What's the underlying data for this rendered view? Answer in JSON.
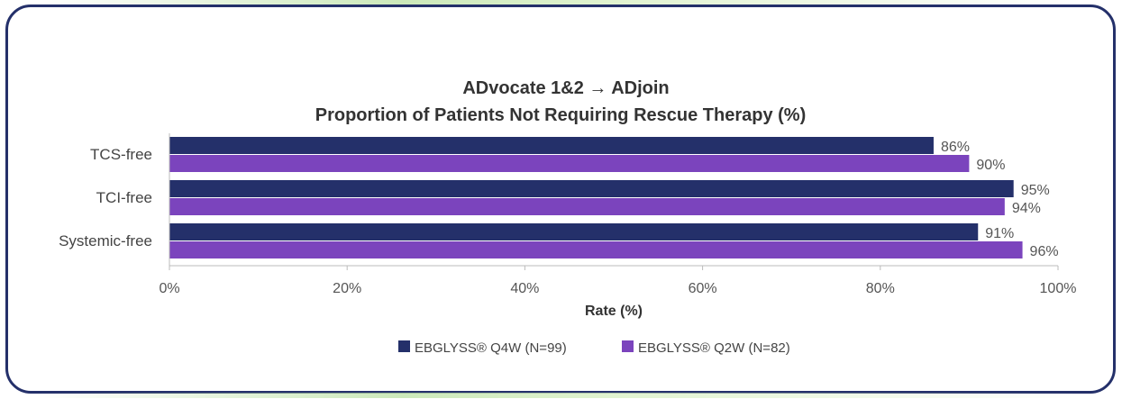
{
  "chart_data": {
    "type": "bar",
    "orientation": "horizontal",
    "title": "ADvocate 1&2 → ADjoin",
    "subtitle": "Proportion of Patients Not Requiring Rescue Therapy (%)",
    "categories": [
      "TCS-free",
      "TCI-free",
      "Systemic-free"
    ],
    "series": [
      {
        "name": "EBGLYSS® Q4W (N=99)",
        "color": "#24306a",
        "values": [
          86,
          95,
          91
        ],
        "labels": [
          "86%",
          "95%",
          "91%"
        ]
      },
      {
        "name": "EBGLYSS® Q2W (N=82)",
        "color": "#7b44bd",
        "values": [
          90,
          94,
          96
        ],
        "labels": [
          "90%",
          "94%",
          "96%"
        ]
      }
    ],
    "xlabel": "Rate (%)",
    "xlim": [
      0,
      100
    ],
    "xticks": [
      0,
      20,
      40,
      60,
      80,
      100
    ],
    "xtick_labels": [
      "0%",
      "20%",
      "40%",
      "60%",
      "80%",
      "100%"
    ],
    "legend_position": "bottom",
    "grid": false
  }
}
